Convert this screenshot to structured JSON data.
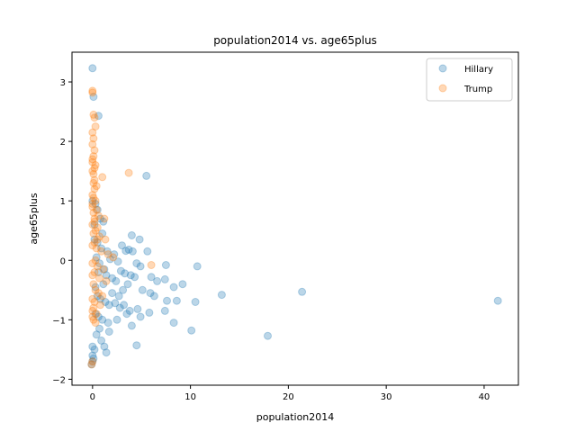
{
  "chart_data": {
    "type": "scatter",
    "title": "population2014 vs. age65plus",
    "xlabel": "population2014",
    "ylabel": "age65plus",
    "xlim": [
      -2.1,
      43.5
    ],
    "ylim": [
      -2.1,
      3.5
    ],
    "xticks": [
      0,
      10,
      20,
      30,
      40
    ],
    "yticks": [
      -2,
      -1,
      0,
      1,
      2,
      3
    ],
    "grid": false,
    "legend_position": "top-right",
    "series": [
      {
        "name": "Hillary",
        "color": "#1f77b4",
        "points": [
          [
            0.0,
            3.23
          ],
          [
            0.1,
            2.75
          ],
          [
            0.6,
            2.43
          ],
          [
            5.5,
            1.42
          ],
          [
            0.0,
            1.0
          ],
          [
            0.3,
            0.95
          ],
          [
            0.5,
            0.85
          ],
          [
            0.8,
            0.7
          ],
          [
            1.1,
            0.65
          ],
          [
            0.2,
            0.6
          ],
          [
            4.0,
            0.42
          ],
          [
            4.8,
            0.35
          ],
          [
            3.0,
            0.25
          ],
          [
            0.9,
            0.2
          ],
          [
            1.5,
            0.15
          ],
          [
            2.2,
            0.1
          ],
          [
            3.4,
            0.16
          ],
          [
            3.7,
            0.18
          ],
          [
            4.1,
            0.15
          ],
          [
            5.6,
            0.15
          ],
          [
            0.4,
            0.05
          ],
          [
            1.8,
            0.02
          ],
          [
            2.6,
            -0.02
          ],
          [
            4.5,
            -0.05
          ],
          [
            4.9,
            -0.1
          ],
          [
            7.5,
            -0.08
          ],
          [
            10.7,
            -0.1
          ],
          [
            1.2,
            -0.15
          ],
          [
            2.9,
            -0.18
          ],
          [
            3.3,
            -0.22
          ],
          [
            3.9,
            -0.25
          ],
          [
            4.3,
            -0.28
          ],
          [
            6.0,
            -0.28
          ],
          [
            6.6,
            -0.35
          ],
          [
            7.4,
            -0.32
          ],
          [
            9.2,
            -0.4
          ],
          [
            8.3,
            -0.45
          ],
          [
            2.0,
            -0.3
          ],
          [
            2.4,
            -0.35
          ],
          [
            3.6,
            -0.4
          ],
          [
            5.1,
            -0.5
          ],
          [
            5.9,
            -0.55
          ],
          [
            6.3,
            -0.6
          ],
          [
            13.2,
            -0.58
          ],
          [
            21.4,
            -0.53
          ],
          [
            41.4,
            -0.68
          ],
          [
            10.5,
            -0.7
          ],
          [
            8.6,
            -0.68
          ],
          [
            7.6,
            -0.68
          ],
          [
            0.5,
            -0.6
          ],
          [
            0.8,
            -0.65
          ],
          [
            1.3,
            -0.7
          ],
          [
            1.7,
            -0.75
          ],
          [
            2.3,
            -0.72
          ],
          [
            2.8,
            -0.8
          ],
          [
            3.2,
            -0.75
          ],
          [
            3.8,
            -0.85
          ],
          [
            4.6,
            -0.82
          ],
          [
            4.9,
            -0.95
          ],
          [
            3.5,
            -0.9
          ],
          [
            7.4,
            -0.85
          ],
          [
            5.8,
            -0.88
          ],
          [
            0.3,
            -0.9
          ],
          [
            0.6,
            -0.95
          ],
          [
            1.0,
            -1.0
          ],
          [
            1.6,
            -1.05
          ],
          [
            2.5,
            -1.0
          ],
          [
            4.0,
            -1.1
          ],
          [
            8.3,
            -1.05
          ],
          [
            10.1,
            -1.18
          ],
          [
            17.9,
            -1.27
          ],
          [
            1.7,
            -1.2
          ],
          [
            0.9,
            -1.35
          ],
          [
            1.2,
            -1.45
          ],
          [
            1.4,
            -1.55
          ],
          [
            4.5,
            -1.43
          ],
          [
            0.2,
            -1.5
          ],
          [
            0.0,
            -1.45
          ],
          [
            0.0,
            -1.6
          ],
          [
            0.1,
            -1.65
          ],
          [
            0.0,
            -1.7
          ],
          [
            -0.1,
            -1.75
          ],
          [
            0.4,
            -1.25
          ],
          [
            0.7,
            -1.15
          ],
          [
            2.0,
            -0.55
          ],
          [
            1.1,
            -0.4
          ],
          [
            0.6,
            -0.2
          ],
          [
            0.3,
            -0.45
          ],
          [
            2.7,
            -0.6
          ],
          [
            3.1,
            -0.5
          ],
          [
            0.5,
            0.3
          ],
          [
            1.0,
            0.45
          ],
          [
            0.2,
            0.35
          ],
          [
            0.7,
            -0.05
          ],
          [
            1.4,
            -0.25
          ]
        ]
      },
      {
        "name": "Trump",
        "color": "#ff7f0e",
        "points": [
          [
            0.0,
            2.85
          ],
          [
            0.0,
            2.82
          ],
          [
            0.1,
            2.45
          ],
          [
            0.2,
            2.4
          ],
          [
            0.3,
            2.25
          ],
          [
            0.0,
            2.15
          ],
          [
            0.1,
            2.05
          ],
          [
            0.0,
            1.95
          ],
          [
            0.2,
            1.85
          ],
          [
            0.1,
            1.75
          ],
          [
            0.0,
            1.65
          ],
          [
            0.3,
            1.6
          ],
          [
            0.2,
            1.55
          ],
          [
            0.0,
            1.5
          ],
          [
            3.7,
            1.47
          ],
          [
            1.0,
            1.4
          ],
          [
            0.1,
            1.3
          ],
          [
            0.2,
            1.2
          ],
          [
            0.0,
            1.1
          ],
          [
            0.1,
            1.05
          ],
          [
            0.3,
            1.0
          ],
          [
            0.0,
            0.9
          ],
          [
            0.4,
            0.85
          ],
          [
            0.1,
            0.8
          ],
          [
            0.6,
            0.75
          ],
          [
            1.2,
            0.7
          ],
          [
            0.2,
            0.65
          ],
          [
            0.0,
            0.6
          ],
          [
            0.5,
            0.55
          ],
          [
            0.3,
            0.5
          ],
          [
            0.1,
            0.45
          ],
          [
            0.7,
            0.4
          ],
          [
            1.3,
            0.35
          ],
          [
            0.2,
            0.3
          ],
          [
            0.0,
            0.25
          ],
          [
            0.4,
            0.2
          ],
          [
            0.9,
            0.15
          ],
          [
            1.6,
            0.1
          ],
          [
            2.1,
            0.05
          ],
          [
            0.3,
            0.0
          ],
          [
            0.0,
            -0.05
          ],
          [
            0.5,
            -0.1
          ],
          [
            1.1,
            -0.15
          ],
          [
            6.0,
            -0.08
          ],
          [
            0.2,
            -0.2
          ],
          [
            0.0,
            -0.25
          ],
          [
            0.7,
            -0.3
          ],
          [
            1.4,
            -0.35
          ],
          [
            0.1,
            -0.4
          ],
          [
            0.3,
            -0.5
          ],
          [
            0.6,
            -0.55
          ],
          [
            1.0,
            -0.6
          ],
          [
            0.0,
            -0.65
          ],
          [
            0.2,
            -0.7
          ],
          [
            0.8,
            -0.75
          ],
          [
            0.1,
            -0.8
          ],
          [
            0.0,
            -0.85
          ],
          [
            0.4,
            -0.9
          ],
          [
            0.0,
            -0.95
          ],
          [
            0.1,
            -1.0
          ],
          [
            0.3,
            -1.05
          ],
          [
            0.0,
            -1.7
          ],
          [
            -0.1,
            -1.75
          ],
          [
            0.0,
            1.7
          ],
          [
            0.1,
            1.45
          ],
          [
            0.2,
            1.35
          ],
          [
            0.4,
            1.25
          ],
          [
            0.0,
            0.95
          ],
          [
            0.2,
            0.7
          ],
          [
            0.5,
            0.35
          ]
        ]
      }
    ]
  }
}
